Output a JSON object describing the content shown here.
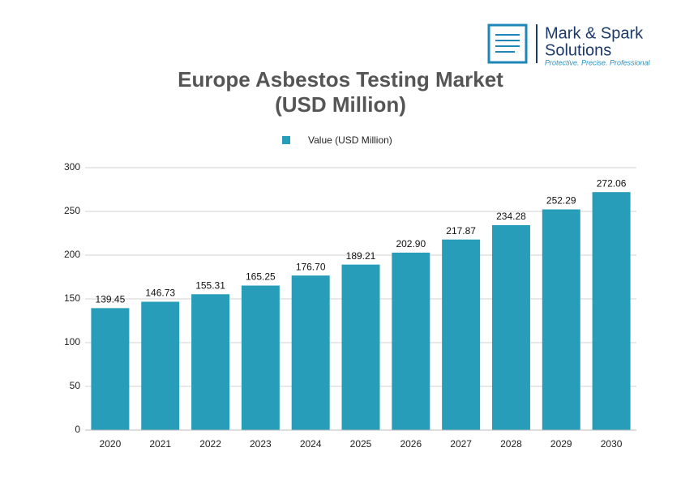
{
  "logo": {
    "name_line1": "Mark & Spark",
    "name_line2": "Solutions",
    "tagline": "Protective. Precise. Professional"
  },
  "chart_data": {
    "type": "bar",
    "title": [
      "Europe Asbestos Testing Market",
      "(USD Million)"
    ],
    "categories": [
      "2020",
      "2021",
      "2022",
      "2023",
      "2024",
      "2025",
      "2026",
      "2027",
      "2028",
      "2029",
      "2030"
    ],
    "series": [
      {
        "name": "Value (USD Million)",
        "color": "#279dba",
        "values": [
          139.45,
          146.73,
          155.31,
          165.25,
          176.7,
          189.21,
          202.9,
          217.87,
          234.28,
          252.29,
          272.06
        ],
        "value_labels": [
          "139.45",
          "146.73",
          "155.31",
          "165.25",
          "176.70",
          "189.21",
          "202.90",
          "217.87",
          "234.28",
          "252.29",
          "272.06"
        ]
      }
    ],
    "ylim": [
      0,
      300
    ],
    "yticks": [
      0,
      50,
      100,
      150,
      200,
      250,
      300
    ],
    "grid": true,
    "legend": "top"
  }
}
